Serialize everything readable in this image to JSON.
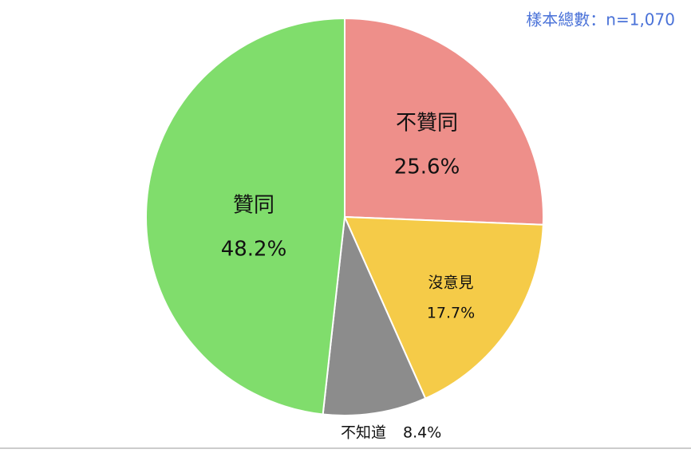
{
  "chart_data": {
    "type": "pie",
    "subtitle": "樣本總數：n=1,070",
    "categories": [
      "不贊同",
      "沒意見",
      "不知道",
      "贊同"
    ],
    "values": [
      25.6,
      17.7,
      8.4,
      48.2
    ],
    "value_labels": [
      "25.6%",
      "17.7%",
      "8.4%",
      "48.2%"
    ],
    "colors": [
      "#ee8f8a",
      "#f5cb48",
      "#8c8c8c",
      "#80dd6c"
    ]
  }
}
